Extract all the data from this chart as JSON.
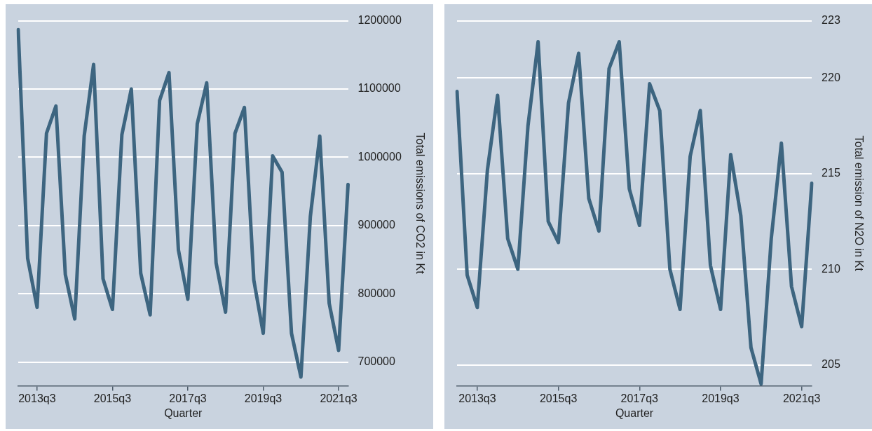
{
  "chart_data": [
    {
      "type": "line",
      "xlabel": "Quarter",
      "ylabel": "Total emissions of CO2 in Kt",
      "categories": [
        null,
        null,
        "2013q3",
        null,
        null,
        null,
        null,
        null,
        null,
        null,
        "2015q3",
        null,
        null,
        null,
        null,
        null,
        null,
        null,
        "2017q3",
        null,
        null,
        null,
        null,
        null,
        null,
        null,
        "2019q3",
        null,
        null,
        null,
        null,
        null,
        null,
        null,
        "2021q3",
        null
      ],
      "series": [
        {
          "color": "#3d6580",
          "values": [
            1187000,
            852000,
            780000,
            1035000,
            1075000,
            828000,
            763000,
            1031000,
            1136000,
            822000,
            777000,
            1033000,
            1100000,
            830000,
            769000,
            1083000,
            1124000,
            864000,
            792000,
            1049000,
            1109000,
            845000,
            773000,
            1035000,
            1073000,
            820000,
            742000,
            1002000,
            978000,
            742000,
            678000,
            913000,
            1031000,
            786000,
            717000,
            960000
          ]
        }
      ],
      "ylim": [
        665000,
        1200000
      ],
      "yticks": [
        700000,
        800000,
        900000,
        1000000,
        1100000,
        1200000
      ],
      "grid": "y",
      "marker": "none"
    },
    {
      "type": "line",
      "xlabel": "Quarter",
      "ylabel": "Total emission of N2O in Kt",
      "categories": [
        null,
        null,
        "2013q3",
        null,
        null,
        null,
        null,
        null,
        null,
        null,
        "2015q3",
        null,
        null,
        null,
        null,
        null,
        null,
        null,
        "2017q3",
        null,
        null,
        null,
        null,
        null,
        null,
        null,
        "2019q3",
        null,
        null,
        null,
        null,
        null,
        null,
        null,
        "2021q3",
        null
      ],
      "series": [
        {
          "color": "#3d6580",
          "values": [
            219.3,
            209.7,
            208.0,
            215.2,
            219.1,
            211.6,
            210.0,
            217.5,
            221.9,
            212.5,
            211.4,
            218.7,
            221.3,
            213.7,
            212.0,
            220.5,
            221.9,
            214.2,
            212.3,
            219.7,
            218.3,
            210.0,
            207.9,
            215.9,
            218.3,
            210.2,
            207.9,
            216.0,
            212.8,
            205.9,
            204.0,
            211.6,
            216.6,
            209.1,
            207.0,
            214.5
          ]
        }
      ],
      "ylim": [
        203.9,
        223
      ],
      "yticks": [
        205,
        210,
        215,
        220,
        223
      ],
      "grid": "y",
      "marker": "none"
    }
  ]
}
